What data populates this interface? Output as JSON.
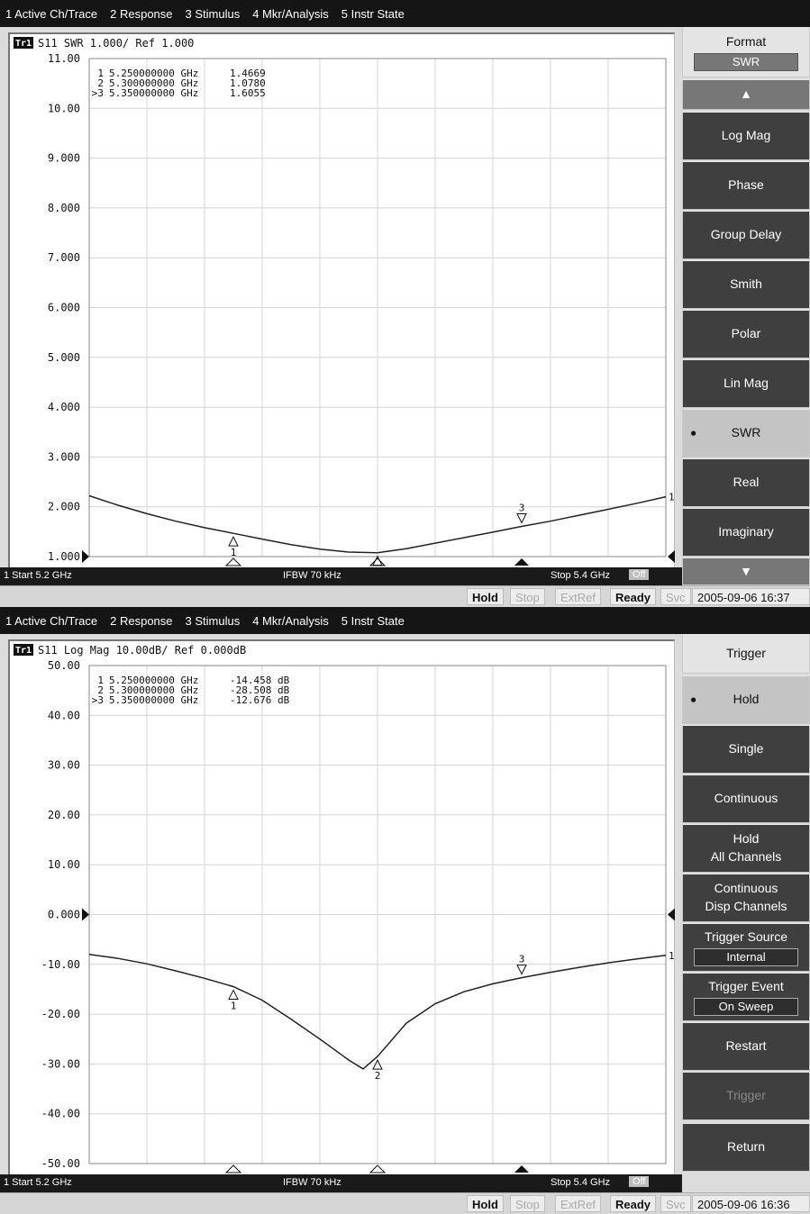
{
  "colors": {
    "menubar": "#151515",
    "softkey": "#3f3f3f",
    "trace": "#222222",
    "grid": "#d4d4d4"
  },
  "screens": [
    {
      "menu": [
        "1 Active Ch/Trace",
        "2 Response",
        "3 Stimulus",
        "4 Mkr/Analysis",
        "5 Instr State"
      ],
      "trace_header": {
        "badge": "Tr1",
        "text": "S11  SWR 1.000/ Ref 1.000"
      },
      "markers": [
        {
          "prefix": "1",
          "freq": "5.250000000 GHz",
          "value": "1.4669"
        },
        {
          "prefix": "2",
          "freq": "5.300000000 GHz",
          "value": "1.0780"
        },
        {
          "prefix": ">3",
          "freq": "5.350000000 GHz",
          "value": "1.6055"
        }
      ],
      "channel": {
        "start": "1  Start 5.2 GHz",
        "ifbw": "IFBW 70 kHz",
        "stop": "Stop 5.4 GHz",
        "off": "Off"
      },
      "status": {
        "hold": "Hold",
        "stop": "Stop",
        "extref": "ExtRef",
        "ready": "Ready",
        "svc": "Svc",
        "datetime": "2005-09-06 16:37"
      },
      "softkeys": {
        "title": "Format",
        "value": "SWR",
        "up_icon": "up-arrow-icon",
        "down_icon": "down-arrow-icon",
        "items": [
          "Log Mag",
          "Phase",
          "Group Delay",
          "Smith",
          "Polar",
          "Lin Mag",
          "SWR",
          "Real",
          "Imaginary"
        ],
        "selected": "SWR"
      },
      "chart_data": {
        "type": "line",
        "title": "S11  SWR 1.000/ Ref 1.000",
        "xlabel": "",
        "ylabel": "",
        "xlim": [
          5.2,
          5.4
        ],
        "ylim": [
          1.0,
          11.0
        ],
        "y_ticks": [
          "11.00",
          "10.00",
          "9.000",
          "8.000",
          "7.000",
          "6.000",
          "5.000",
          "4.000",
          "3.000",
          "2.000",
          "1.000"
        ],
        "grid": true,
        "ref_value": 1.0,
        "series": [
          {
            "x": [
              5.2,
              5.21,
              5.22,
              5.23,
              5.24,
              5.25,
              5.26,
              5.27,
              5.28,
              5.29,
              5.3,
              5.31,
              5.32,
              5.33,
              5.34,
              5.35,
              5.36,
              5.37,
              5.38,
              5.39,
              5.4
            ],
            "values": [
              2.22,
              2.03,
              1.86,
              1.71,
              1.58,
              1.467,
              1.35,
              1.24,
              1.15,
              1.09,
              1.078,
              1.16,
              1.27,
              1.38,
              1.49,
              1.6055,
              1.71,
              1.83,
              1.95,
              2.07,
              2.2
            ]
          }
        ],
        "markers": [
          {
            "label": "1",
            "x": 5.25,
            "y": 1.4669
          },
          {
            "label": "2",
            "x": 5.3,
            "y": 1.078
          },
          {
            "label": "3",
            "x": 5.35,
            "y": 1.6055
          }
        ]
      }
    },
    {
      "menu": [
        "1 Active Ch/Trace",
        "2 Response",
        "3 Stimulus",
        "4 Mkr/Analysis",
        "5 Instr State"
      ],
      "trace_header": {
        "badge": "Tr1",
        "text": "S11  Log Mag 10.00dB/ Ref 0.000dB"
      },
      "markers": [
        {
          "prefix": "1",
          "freq": "5.250000000 GHz",
          "value": "-14.458 dB"
        },
        {
          "prefix": "2",
          "freq": "5.300000000 GHz",
          "value": "-28.508 dB"
        },
        {
          "prefix": ">3",
          "freq": "5.350000000 GHz",
          "value": "-12.676 dB"
        }
      ],
      "channel": {
        "start": "1  Start 5.2 GHz",
        "ifbw": "IFBW 70 kHz",
        "stop": "Stop 5.4 GHz",
        "off": "Off"
      },
      "status": {
        "hold": "Hold",
        "stop": "Stop",
        "extref": "ExtRef",
        "ready": "Ready",
        "svc": "Svc",
        "datetime": "2005-09-06 16:36"
      },
      "softkeys": {
        "title": "Trigger",
        "hold": "Hold",
        "single": "Single",
        "continuous": "Continuous",
        "hold_all_1": "Hold",
        "hold_all_2": "All Channels",
        "cont_disp_1": "Continuous",
        "cont_disp_2": "Disp Channels",
        "trig_source": "Trigger Source",
        "trig_source_value": "Internal",
        "trig_event": "Trigger Event",
        "trig_event_value": "On Sweep",
        "restart": "Restart",
        "trigger": "Trigger",
        "return": "Return",
        "selected": "Hold"
      },
      "chart_data": {
        "type": "line",
        "title": "S11  Log Mag 10.00dB/ Ref 0.000dB",
        "xlabel": "",
        "ylabel": "",
        "xlim": [
          5.2,
          5.4
        ],
        "ylim": [
          -50,
          50
        ],
        "y_ticks": [
          "50.00",
          "40.00",
          "30.00",
          "20.00",
          "10.00",
          "0.000",
          "-10.00",
          "-20.00",
          "-30.00",
          "-40.00",
          "-50.00"
        ],
        "grid": true,
        "ref_value": 0,
        "series": [
          {
            "x": [
              5.2,
              5.21,
              5.22,
              5.23,
              5.24,
              5.25,
              5.26,
              5.27,
              5.28,
              5.29,
              5.295,
              5.3,
              5.31,
              5.32,
              5.33,
              5.34,
              5.35,
              5.36,
              5.37,
              5.38,
              5.39,
              5.4
            ],
            "values": [
              -8.0,
              -8.8,
              -9.9,
              -11.3,
              -12.8,
              -14.458,
              -17.2,
              -21.0,
              -25.0,
              -29.2,
              -31.0,
              -28.508,
              -21.8,
              -17.9,
              -15.5,
              -13.9,
              -12.676,
              -11.6,
              -10.6,
              -9.7,
              -8.9,
              -8.2
            ]
          }
        ],
        "markers": [
          {
            "label": "1",
            "x": 5.25,
            "y": -14.458
          },
          {
            "label": "2",
            "x": 5.3,
            "y": -28.508
          },
          {
            "label": "3",
            "x": 5.35,
            "y": -12.676
          }
        ]
      }
    }
  ]
}
